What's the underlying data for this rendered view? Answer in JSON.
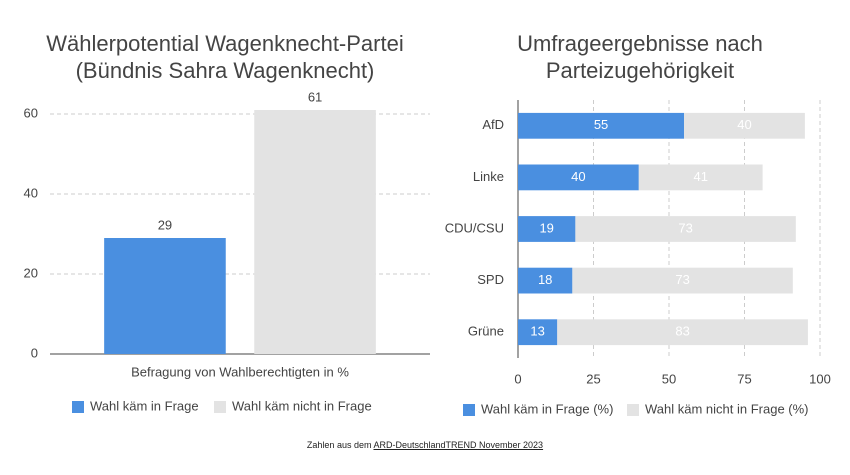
{
  "chart_data": [
    {
      "type": "bar",
      "title": "Wählerpotential Wagenknecht-Partei (Bündnis Sahra Wagenknecht)",
      "x_label": "Befragung von Wahlberechtigten in %",
      "categories": [
        null
      ],
      "series": [
        {
          "name": "Wahl käm in Frage",
          "color": "#4a8fe0",
          "values": [
            29
          ]
        },
        {
          "name": "Wahl käm nicht in Frage",
          "color": "#e3e3e3",
          "values": [
            61
          ]
        }
      ],
      "ylim": [
        0,
        63.5
      ],
      "yticks": [
        0,
        20,
        40,
        60
      ],
      "grid": true
    },
    {
      "type": "hbar",
      "stacked": true,
      "title": "Umfrageergebnisse nach Parteizugehörigkeit",
      "categories": [
        "AfD",
        "Linke",
        "CDU/CSU",
        "SPD",
        "Grüne"
      ],
      "series": [
        {
          "name": "Wahl käm in Frage (%)",
          "color": "#4a8fe0",
          "values": [
            55,
            40,
            19,
            18,
            13
          ]
        },
        {
          "name": "Wahl käm nicht in Frage (%)",
          "color": "#e3e3e3",
          "values": [
            40,
            41,
            73,
            73,
            83
          ]
        }
      ],
      "xlim": [
        0,
        100
      ],
      "xticks": [
        0,
        25,
        50,
        75,
        100
      ],
      "grid": true
    }
  ],
  "footer": {
    "text": "Zahlen aus dem",
    "link": "ARD-DeutschlandTREND November 2023"
  }
}
